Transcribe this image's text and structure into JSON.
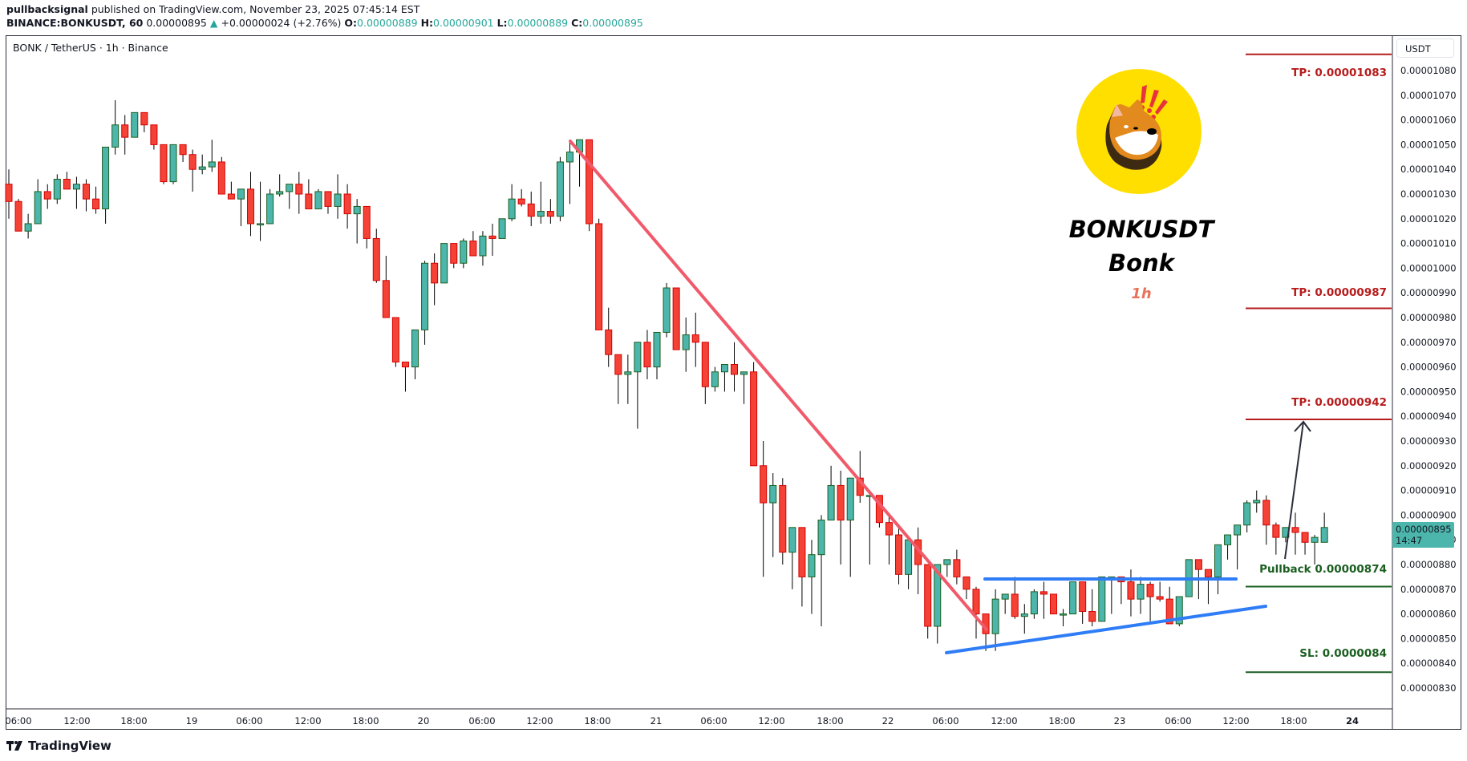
{
  "header": {
    "author": "pullbacksignal",
    "published_text": "published on TradingView.com, November 23, 2025 07:45:14 EST",
    "symbol_interval": "BINANCE:BONKUSDT, 60",
    "last_price": "0.00000895",
    "change_arrow": "▲",
    "change": "+0.00000024 (+2.76%)",
    "o_label": "O:",
    "o_value": "0.00000889",
    "h_label": "H:",
    "h_value": "0.00000901",
    "l_label": "L:",
    "l_value": "0.00000889",
    "c_label": "C:",
    "c_value": "0.00000895"
  },
  "chart_legend": "BONK / TetherUS · 1h · Binance",
  "currency_button": "USDT",
  "current_price_badge": {
    "price": "0.00000895",
    "countdown": "14:47"
  },
  "overlay": {
    "title": "BONKUSDT",
    "subtitle": "Bonk",
    "timeframe": "1h"
  },
  "levels": [
    {
      "label": "TP: 0.00001083",
      "price": 1083,
      "color": "#b71c1c"
    },
    {
      "label": "TP: 0.00000987",
      "price": 987,
      "color": "#b71c1c"
    },
    {
      "label": "TP: 0.00000942",
      "price": 942,
      "color": "#b71c1c"
    },
    {
      "label": "Pullback 0.00000874",
      "price": 874,
      "color": "#1b5e20"
    },
    {
      "label": "SL: 0.0000084",
      "price": 840,
      "color": "#1b5e20"
    }
  ],
  "footer": {
    "brand": "TradingView"
  },
  "colors": {
    "up": "#4db6ac",
    "up_border": "#1b5e20",
    "down": "#f44336",
    "down_border": "#d50000",
    "trend_down": "#f05a6a",
    "support": "#2f7df6",
    "arrow": "#2a2e39"
  },
  "chart_data": {
    "type": "candlestick",
    "title": "BONK / TetherUS · 1h · Binance",
    "symbol": "BINANCE:BONKUSDT",
    "interval": "1h",
    "unit": "USDT (×1e-8)",
    "y_ticks": [
      "0.00001080",
      "0.00001070",
      "0.00001060",
      "0.00001050",
      "0.00001040",
      "0.00001030",
      "0.00001020",
      "0.00001010",
      "0.00001000",
      "0.00000990",
      "0.00000980",
      "0.00000970",
      "0.00000960",
      "0.00000950",
      "0.00000940",
      "0.00000930",
      "0.00000920",
      "0.00000910",
      "0.00000900",
      "0.00000890",
      "0.00000880",
      "0.00000870",
      "0.00000860",
      "0.00000850",
      "0.00000840",
      "0.00000830"
    ],
    "x_ticks": [
      "06:00",
      "12:00",
      "18:00",
      "19",
      "06:00",
      "12:00",
      "18:00",
      "20",
      "06:00",
      "12:00",
      "18:00",
      "21",
      "06:00",
      "12:00",
      "18:00",
      "22",
      "06:00",
      "12:00",
      "18:00",
      "23",
      "06:00",
      "12:00",
      "18:00",
      "24"
    ],
    "ylim": [
      827,
      1084
    ],
    "first_candle": "Nov 18 05:00",
    "ohlc": [
      [
        1034,
        1040,
        1020,
        1027
      ],
      [
        1027,
        1028,
        1015,
        1015
      ],
      [
        1015,
        1022,
        1012,
        1018
      ],
      [
        1018,
        1036,
        1018,
        1031
      ],
      [
        1031,
        1034,
        1024,
        1028
      ],
      [
        1028,
        1038,
        1026,
        1036
      ],
      [
        1036,
        1039,
        1032,
        1032
      ],
      [
        1032,
        1037,
        1024,
        1034
      ],
      [
        1034,
        1036,
        1023,
        1028
      ],
      [
        1028,
        1033,
        1022,
        1024
      ],
      [
        1024,
        1048,
        1018,
        1049
      ],
      [
        1049,
        1068,
        1046,
        1058
      ],
      [
        1058,
        1062,
        1046,
        1053
      ],
      [
        1053,
        1063,
        1053,
        1063
      ],
      [
        1063,
        1063,
        1055,
        1058
      ],
      [
        1058,
        1056,
        1048,
        1050
      ],
      [
        1050,
        1049,
        1034,
        1035
      ],
      [
        1035,
        1050,
        1034,
        1050
      ],
      [
        1050,
        1047,
        1043,
        1046
      ],
      [
        1046,
        1048,
        1031,
        1040
      ],
      [
        1040,
        1046,
        1038,
        1041
      ],
      [
        1041,
        1052,
        1039,
        1043
      ],
      [
        1043,
        1045,
        1030,
        1030
      ],
      [
        1030,
        1035,
        1029,
        1028
      ],
      [
        1028,
        1032,
        1017,
        1032
      ],
      [
        1032,
        1039,
        1013,
        1018
      ],
      [
        1018,
        1035,
        1011,
        1018
      ],
      [
        1018,
        1032,
        1020,
        1030
      ],
      [
        1030,
        1038,
        1029,
        1031
      ],
      [
        1031,
        1033,
        1024,
        1034
      ],
      [
        1034,
        1039,
        1022,
        1030
      ],
      [
        1030,
        1036,
        1024,
        1024
      ],
      [
        1024,
        1032,
        1024,
        1031
      ],
      [
        1031,
        1030,
        1022,
        1025
      ],
      [
        1025,
        1038,
        1020,
        1030
      ],
      [
        1030,
        1034,
        1016,
        1022
      ],
      [
        1022,
        1028,
        1010,
        1025
      ],
      [
        1025,
        1019,
        1008,
        1012
      ],
      [
        1012,
        1016,
        994,
        995
      ],
      [
        995,
        1005,
        985,
        980
      ],
      [
        980,
        975,
        960,
        962
      ],
      [
        962,
        960,
        950,
        960
      ],
      [
        960,
        963,
        955,
        975
      ],
      [
        975,
        1003,
        969,
        1002
      ],
      [
        1002,
        1006,
        985,
        994
      ],
      [
        994,
        1010,
        994,
        1010
      ],
      [
        1010,
        1006,
        1000,
        1002
      ],
      [
        1002,
        1012,
        1000,
        1011
      ],
      [
        1011,
        1015,
        1006,
        1005
      ],
      [
        1005,
        1015,
        1001,
        1013
      ],
      [
        1013,
        1018,
        1005,
        1012
      ],
      [
        1012,
        1020,
        1012,
        1020
      ],
      [
        1020,
        1034,
        1019,
        1028
      ],
      [
        1028,
        1032,
        1025,
        1026
      ],
      [
        1026,
        1031,
        1017,
        1021
      ],
      [
        1021,
        1035,
        1018,
        1023
      ],
      [
        1023,
        1028,
        1018,
        1021
      ],
      [
        1021,
        1045,
        1019,
        1043
      ],
      [
        1043,
        1052,
        1026,
        1047
      ],
      [
        1047,
        1052,
        1033,
        1052
      ],
      [
        1052,
        1051,
        1015,
        1018
      ],
      [
        1018,
        1020,
        980,
        975
      ],
      [
        975,
        984,
        960,
        965
      ],
      [
        965,
        958,
        945,
        957
      ],
      [
        957,
        965,
        945,
        958
      ],
      [
        958,
        962,
        935,
        970
      ],
      [
        970,
        975,
        955,
        960
      ],
      [
        960,
        968,
        955,
        974
      ],
      [
        974,
        994,
        972,
        992
      ],
      [
        992,
        988,
        967,
        967
      ],
      [
        967,
        980,
        958,
        973
      ],
      [
        973,
        982,
        960,
        970
      ],
      [
        970,
        965,
        945,
        952
      ],
      [
        952,
        960,
        950,
        958
      ],
      [
        958,
        958,
        950,
        961
      ],
      [
        961,
        970,
        950,
        957
      ],
      [
        957,
        958,
        945,
        958
      ],
      [
        958,
        962,
        940,
        920
      ],
      [
        920,
        930,
        875,
        905
      ],
      [
        905,
        917,
        883,
        912
      ],
      [
        912,
        915,
        880,
        885
      ],
      [
        885,
        895,
        870,
        895
      ],
      [
        895,
        887,
        863,
        875
      ],
      [
        875,
        890,
        860,
        884
      ],
      [
        884,
        900,
        855,
        898
      ],
      [
        898,
        920,
        900,
        912
      ],
      [
        912,
        918,
        880,
        898
      ],
      [
        898,
        914,
        875,
        915
      ],
      [
        915,
        926,
        905,
        908
      ],
      [
        908,
        905,
        880,
        908
      ],
      [
        908,
        905,
        895,
        897
      ],
      [
        897,
        900,
        880,
        892
      ],
      [
        892,
        895,
        872,
        876
      ],
      [
        876,
        890,
        870,
        890
      ],
      [
        890,
        895,
        868,
        880
      ],
      [
        880,
        880,
        850,
        855
      ],
      [
        855,
        880,
        848,
        880
      ],
      [
        880,
        880,
        875,
        882
      ],
      [
        882,
        886,
        872,
        875
      ],
      [
        875,
        874,
        866,
        870
      ],
      [
        870,
        871,
        850,
        860
      ],
      [
        860,
        858,
        845,
        852
      ],
      [
        852,
        870,
        845,
        866
      ],
      [
        866,
        868,
        860,
        868
      ],
      [
        868,
        875,
        858,
        859
      ],
      [
        859,
        864,
        852,
        860
      ],
      [
        860,
        870,
        858,
        869
      ],
      [
        869,
        873,
        858,
        868
      ],
      [
        868,
        866,
        860,
        860
      ],
      [
        860,
        862,
        855,
        860
      ],
      [
        860,
        873,
        863,
        873
      ],
      [
        873,
        873,
        856,
        861
      ],
      [
        861,
        870,
        855,
        857
      ],
      [
        857,
        875,
        860,
        875
      ],
      [
        875,
        872,
        860,
        875
      ],
      [
        875,
        874,
        864,
        873
      ],
      [
        873,
        878,
        859,
        866
      ],
      [
        866,
        875,
        860,
        872
      ],
      [
        872,
        873,
        857,
        867
      ],
      [
        867,
        873,
        865,
        866
      ],
      [
        866,
        871,
        861,
        856
      ],
      [
        856,
        864,
        855,
        867
      ],
      [
        867,
        880,
        870,
        882
      ],
      [
        882,
        881,
        866,
        878
      ],
      [
        878,
        875,
        864,
        875
      ],
      [
        875,
        883,
        868,
        888
      ],
      [
        888,
        892,
        882,
        892
      ],
      [
        892,
        893,
        878,
        896
      ],
      [
        896,
        906,
        893,
        905
      ],
      [
        905,
        910,
        901,
        906
      ],
      [
        906,
        908,
        888,
        896
      ],
      [
        896,
        897,
        884,
        891
      ],
      [
        891,
        894,
        889,
        895
      ],
      [
        895,
        901,
        884,
        893
      ],
      [
        893,
        888,
        884,
        889
      ],
      [
        889,
        892,
        880,
        891
      ],
      [
        889,
        901,
        889,
        895
      ]
    ],
    "annotations": [
      {
        "type": "trendline",
        "color": "#f05a6a",
        "from": {
          "time": "Nov 20 15:00",
          "price": 1052
        },
        "to": {
          "time": "Nov 22 09:00",
          "price": 862
        }
      },
      {
        "type": "horizontal_segment",
        "color": "#2f7df6",
        "price": 874,
        "from": "Nov 22 11:00",
        "to": "Nov 23 12:00"
      },
      {
        "type": "trendline",
        "color": "#2f7df6",
        "from": {
          "time": "Nov 22 06:00",
          "price": 845
        },
        "to": {
          "time": "Nov 23 15:00",
          "price": 863
        }
      },
      {
        "type": "arrow",
        "color": "#2a2e39",
        "from": {
          "time": "Nov 23 16:00",
          "price": 876
        },
        "to": {
          "time": "Nov 23 18:00",
          "price": 933
        }
      }
    ]
  }
}
